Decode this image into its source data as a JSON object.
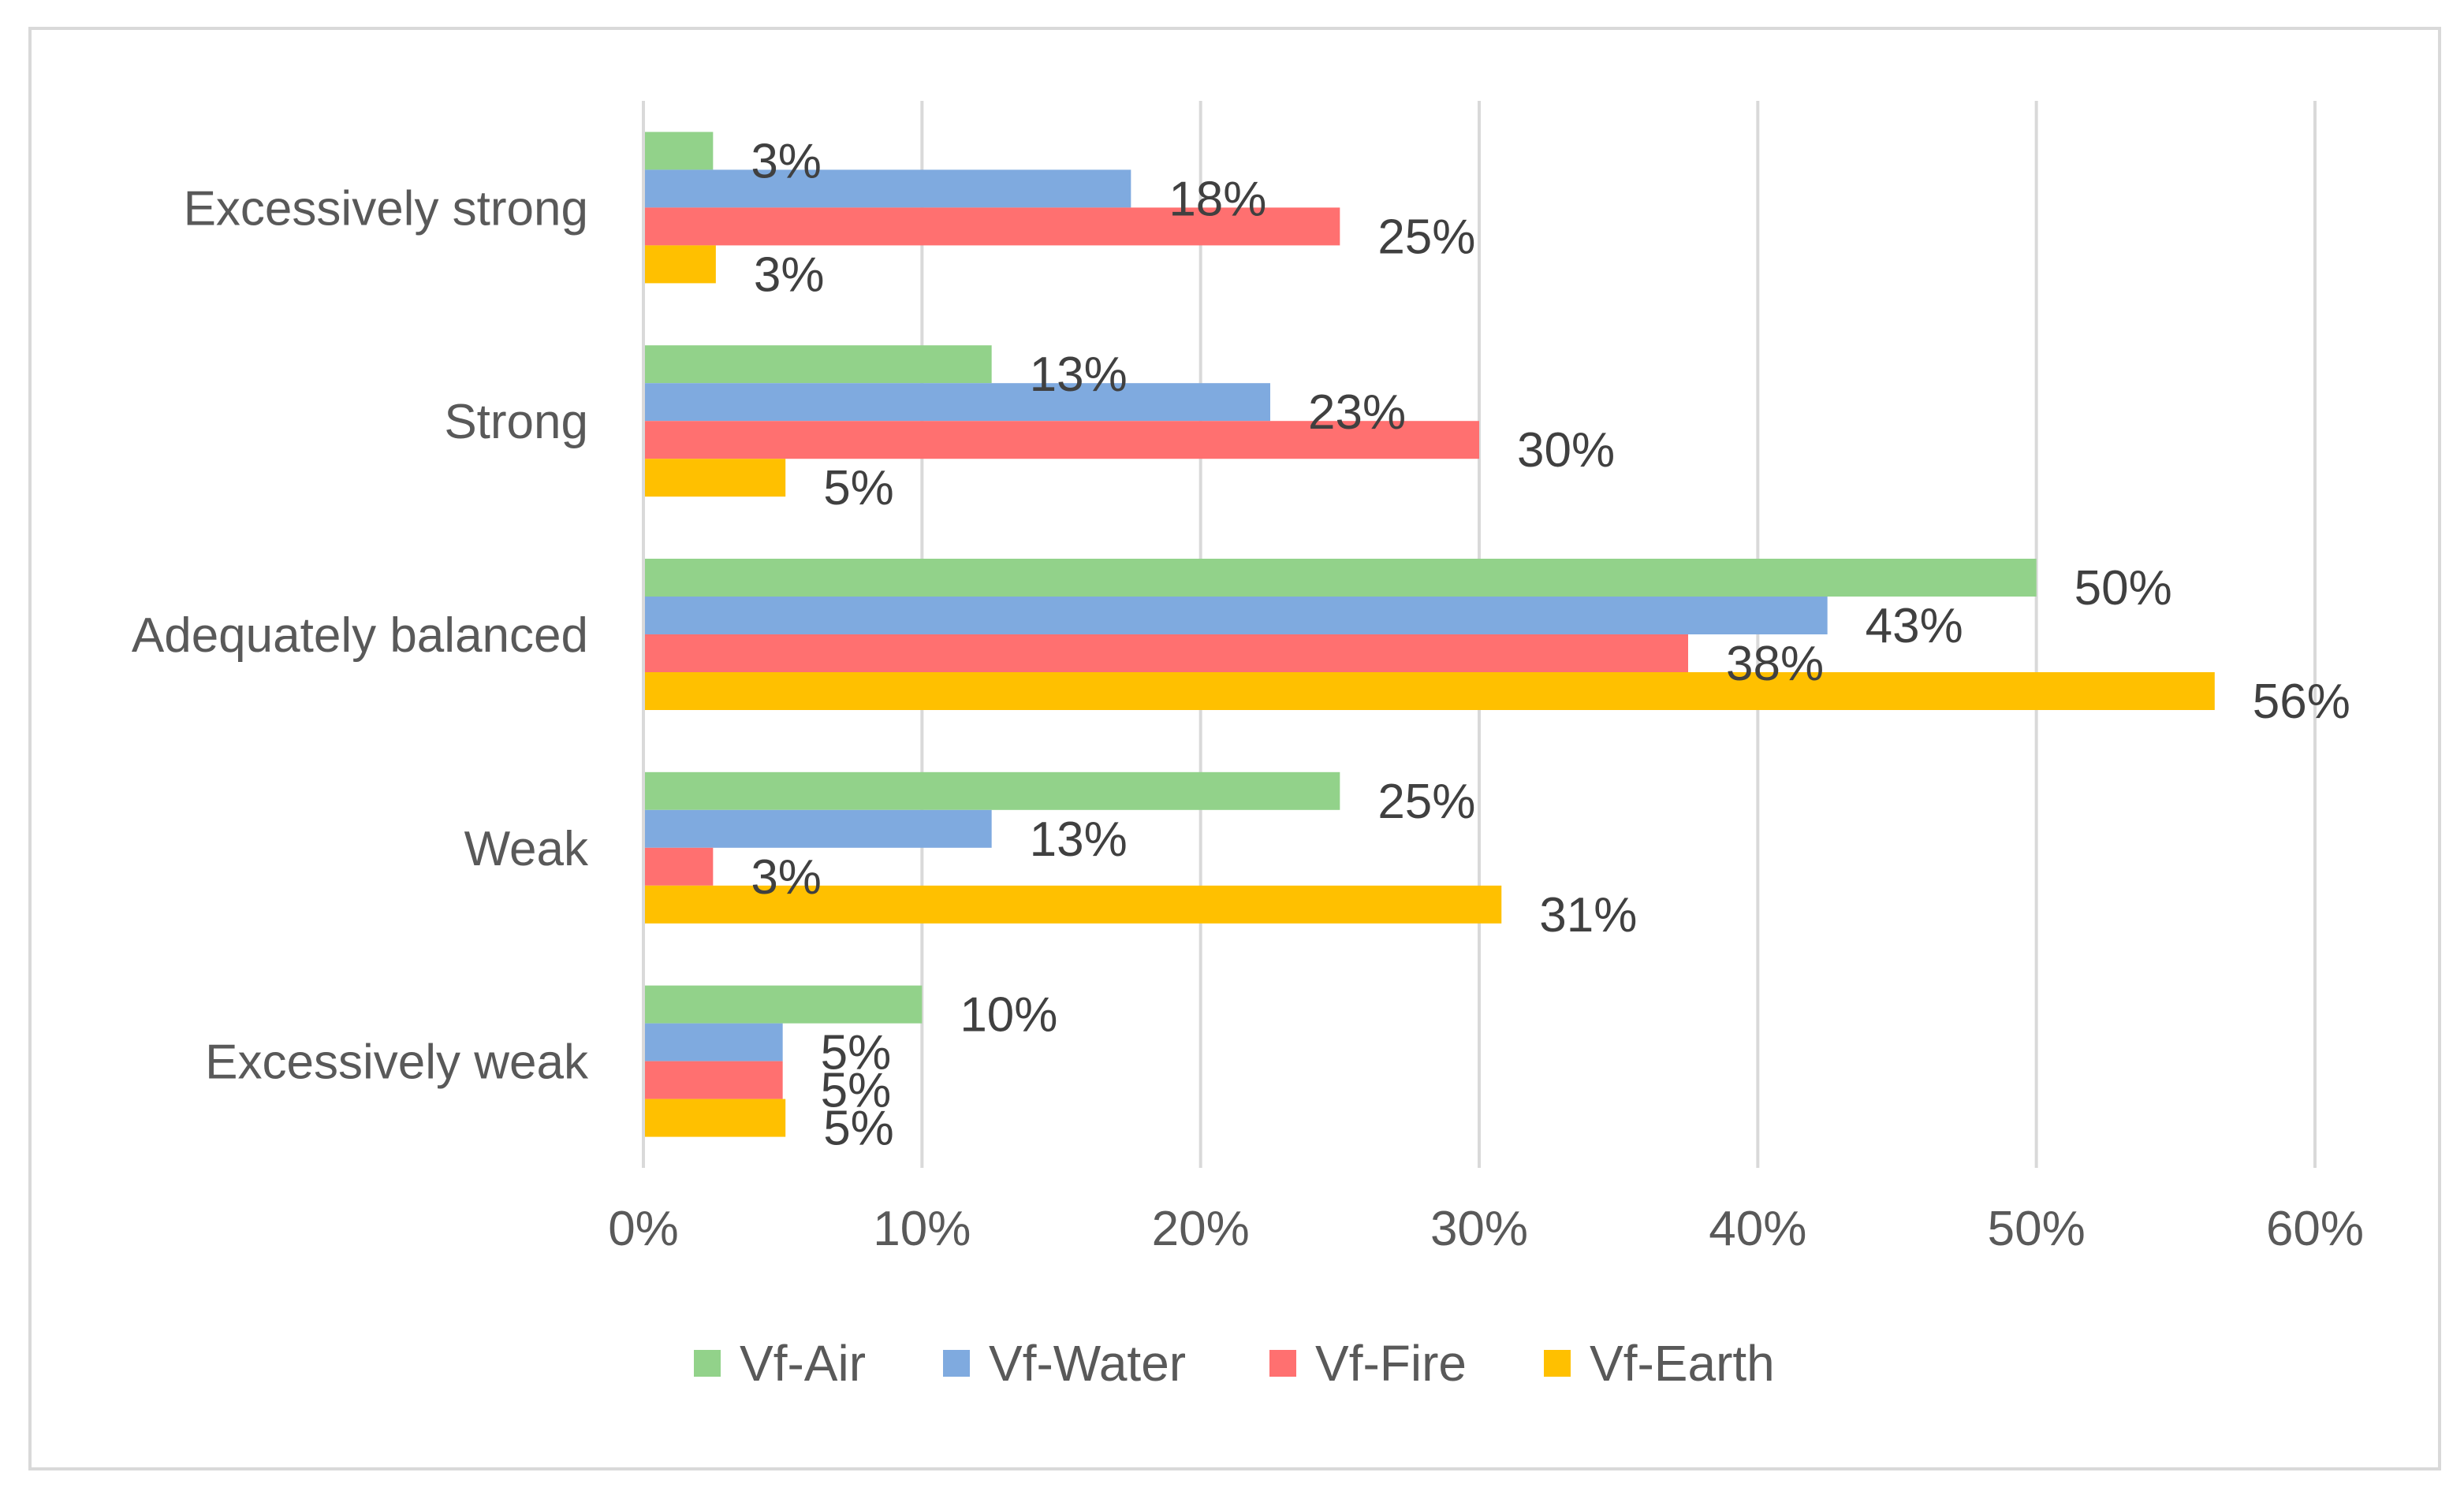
{
  "chart_data": {
    "type": "bar",
    "orientation": "horizontal",
    "title": "",
    "xlabel": "",
    "ylabel": "",
    "categories": [
      "Excessively strong",
      "Strong",
      "Adequately balanced",
      "Weak",
      "Excessively weak"
    ],
    "series": [
      {
        "name": "Vf-Air",
        "color": "#92d28a",
        "values": [
          2.5,
          12.5,
          50,
          25,
          10
        ],
        "labels": [
          "3%",
          "13%",
          "50%",
          "25%",
          "10%"
        ]
      },
      {
        "name": "Vf-Water",
        "color": "#7faadf",
        "values": [
          17.5,
          22.5,
          42.5,
          12.5,
          5
        ],
        "labels": [
          "18%",
          "23%",
          "43%",
          "13%",
          "5%"
        ]
      },
      {
        "name": "Vf-Fire",
        "color": "#ff7070",
        "values": [
          25,
          30,
          37.5,
          2.5,
          5
        ],
        "labels": [
          "25%",
          "30%",
          "38%",
          "3%",
          "5%"
        ]
      },
      {
        "name": "Vf-Earth",
        "color": "#ffc000",
        "values": [
          2.6,
          5.1,
          56.4,
          30.8,
          5.1
        ],
        "labels": [
          "3%",
          "5%",
          "56%",
          "31%",
          "5%"
        ]
      }
    ],
    "xlim": [
      0,
      60
    ],
    "ticks": [
      0,
      10,
      20,
      30,
      40,
      50,
      60
    ],
    "tick_labels": [
      "0%",
      "10%",
      "20%",
      "30%",
      "40%",
      "50%",
      "60%"
    ],
    "grid": true,
    "legend_position": "bottom"
  }
}
